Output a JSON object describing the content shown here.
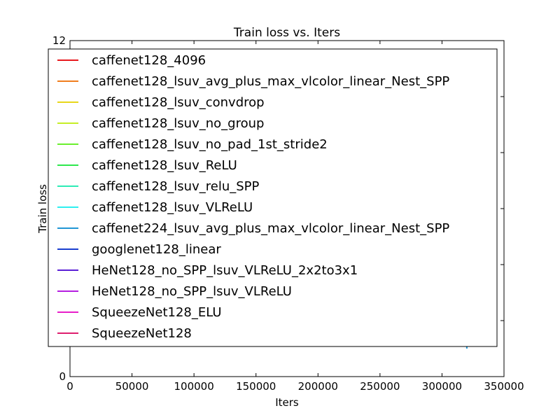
{
  "chart_data": {
    "type": "line",
    "title": "Train loss  vs. Iters",
    "xlabel": "Iters",
    "ylabel": "Train loss",
    "xlim": [
      0,
      350000
    ],
    "ylim": [
      0,
      12
    ],
    "x_ticks": [
      {
        "value": 0,
        "label": "0"
      },
      {
        "value": 50000,
        "label": "50000"
      },
      {
        "value": 100000,
        "label": "100000"
      },
      {
        "value": 150000,
        "label": "150000"
      },
      {
        "value": 200000,
        "label": "200000"
      },
      {
        "value": 250000,
        "label": "250000"
      },
      {
        "value": 300000,
        "label": "300000"
      },
      {
        "value": 350000,
        "label": "350000"
      }
    ],
    "y_ticks": [
      {
        "value": 0,
        "label": "0"
      },
      {
        "value": 2,
        "label": ""
      },
      {
        "value": 4,
        "label": ""
      },
      {
        "value": 6,
        "label": ""
      },
      {
        "value": 8,
        "label": ""
      },
      {
        "value": 10,
        "label": ""
      },
      {
        "value": 12,
        "label": "12"
      }
    ],
    "grid": false,
    "legend_position": "top",
    "series": [
      {
        "name": "caffenet128_4096",
        "color": "#e8191e",
        "points": []
      },
      {
        "name": "caffenet128_lsuv_avg_plus_max_vlcolor_linear_Nest_SPP",
        "color": "#f07d1e",
        "points": []
      },
      {
        "name": "caffenet128_lsuv_convdrop",
        "color": "#e8d71a",
        "points": []
      },
      {
        "name": "caffenet128_lsuv_no_group",
        "color": "#c6ee26",
        "points": []
      },
      {
        "name": "caffenet128_lsuv_no_pad_1st_stride2",
        "color": "#6aef2e",
        "points": []
      },
      {
        "name": "caffenet128_lsuv_ReLU",
        "color": "#2ee84c",
        "points": []
      },
      {
        "name": "caffenet128_lsuv_relu_SPP",
        "color": "#2eecb6",
        "points": []
      },
      {
        "name": "caffenet128_lsuv_VLReLU",
        "color": "#2eeff0",
        "points": []
      },
      {
        "name": "caffenet224_lsuv_avg_plus_max_vlcolor_linear_Nest_SPP",
        "color": "#2196d4",
        "points": [
          [
            320000,
            1.0
          ],
          [
            320000,
            1.7
          ]
        ]
      },
      {
        "name": "googlenet128_linear",
        "color": "#1a3fcf",
        "points": []
      },
      {
        "name": "HeNet128_no_SPP_lsuv_VLReLU_2x2to3x1",
        "color": "#5a1fd6",
        "points": []
      },
      {
        "name": "HeNet128_no_SPP_lsuv_VLReLU",
        "color": "#b51fe0",
        "points": []
      },
      {
        "name": "SqueezeNet128_ELU",
        "color": "#e81fc9",
        "points": []
      },
      {
        "name": "SqueezeNet128",
        "color": "#de1f6e",
        "points": []
      }
    ]
  }
}
